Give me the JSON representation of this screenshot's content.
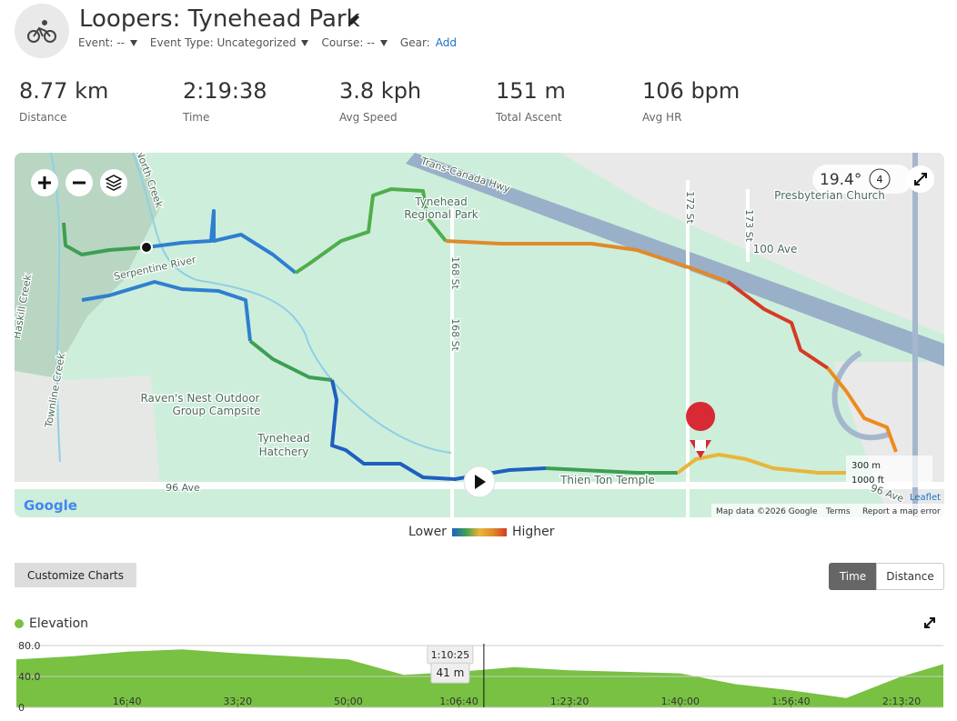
{
  "header": {
    "title": "Loopers: Tynehead Park",
    "meta": [
      "Event: --",
      "Event Type: Uncategorized",
      "Course: --"
    ],
    "gear_label": "Gear:",
    "gear_action": "Add"
  },
  "stats": [
    {
      "value": "8.77 km",
      "label": "Distance"
    },
    {
      "value": "2:19:38",
      "label": "Time"
    },
    {
      "value": "3.8 kph",
      "label": "Avg Speed"
    },
    {
      "value": "151 m",
      "label": "Total Ascent"
    },
    {
      "value": "106 bpm",
      "label": "Avg HR"
    }
  ],
  "map": {
    "labels": [
      "Trans-Canada Hwy",
      "Tynehead",
      "Regional Park",
      "Serpentine River",
      "Raven's Nest Outdoor",
      "Group Campsite",
      "Tynehead",
      "Hatchery",
      "168 St",
      "168 St",
      "172 St",
      "173 St",
      "100 Ave",
      "96 Ave",
      "96 Ave",
      "Thien Ton Temple",
      "Presbyterian Church",
      "North Creek",
      "Townline Creek",
      "Haskill Creek"
    ],
    "temperature": "19.4°",
    "layer_count": "4",
    "scale": [
      "300 m",
      "1000 ft"
    ],
    "google": "Google",
    "attribution": "Map data ©2026 Google",
    "terms": "Terms",
    "report": "Report a map error",
    "leaflet": "Leaflet"
  },
  "legend": {
    "low": "Lower",
    "high": "Higher"
  },
  "toolbar": {
    "customize": "Customize Charts",
    "modes": [
      "Time",
      "Distance"
    ]
  },
  "chart_data": {
    "type": "area",
    "title": "Elevation",
    "color": "#78c142",
    "x": [
      0,
      500,
      1000,
      1500,
      2000,
      2500,
      3000,
      3500,
      4000,
      4500,
      5000,
      5500,
      6000,
      6500,
      7000,
      7500,
      8000,
      8378
    ],
    "values": [
      62,
      66,
      72,
      75,
      70,
      66,
      62,
      42,
      46,
      52,
      48,
      46,
      44,
      30,
      22,
      12,
      40,
      56
    ],
    "xlim": [
      0,
      8378
    ],
    "ylim": [
      0,
      80
    ],
    "yticks": [
      0,
      {
        "value": 40,
        "label": "40.0"
      },
      {
        "value": 80,
        "label": "80.0"
      }
    ],
    "xticks": [
      {
        "value": 1000,
        "label": "16:40"
      },
      {
        "value": 2000,
        "label": "33:20"
      },
      {
        "value": 3000,
        "label": "50:00"
      },
      {
        "value": 4000,
        "label": "1:06:40"
      },
      {
        "value": 5000,
        "label": "1:23:20"
      },
      {
        "value": 6000,
        "label": "1:40:00"
      },
      {
        "value": 7000,
        "label": "1:56:40"
      },
      {
        "value": 8000,
        "label": "2:13:20"
      }
    ],
    "grid": true,
    "cursor": {
      "x": 4225,
      "x_label": "1:10:25",
      "value": 41,
      "value_label": "41 m"
    }
  }
}
